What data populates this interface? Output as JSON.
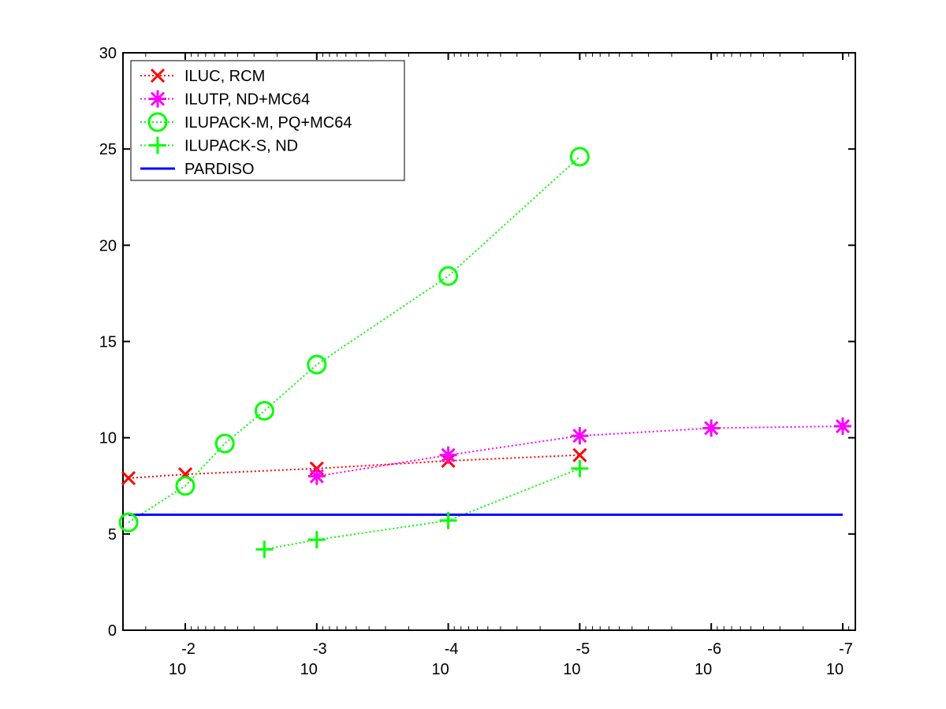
{
  "chart_data": {
    "type": "line",
    "x_scale": "log",
    "x_direction": "decreasing",
    "xlim": [
      0.028,
      1e-07
    ],
    "ylim": [
      0,
      30
    ],
    "xlabel": "",
    "ylabel": "",
    "title": "",
    "grid": false,
    "legend_position": "top-left",
    "x_tick_labels": [
      {
        "value": 0.01,
        "base": "10",
        "exp": "-2"
      },
      {
        "value": 0.001,
        "base": "10",
        "exp": "-3"
      },
      {
        "value": 0.0001,
        "base": "10",
        "exp": "-4"
      },
      {
        "value": 1e-05,
        "base": "10",
        "exp": "-5"
      },
      {
        "value": 1e-06,
        "base": "10",
        "exp": "-6"
      },
      {
        "value": 1e-07,
        "base": "10",
        "exp": "-7"
      }
    ],
    "y_tick_labels": [
      "0",
      "5",
      "10",
      "15",
      "20",
      "25",
      "30"
    ],
    "series": [
      {
        "name": "ILUC, RCM",
        "color": "#ff0000",
        "marker": "x",
        "linestyle": "dotted",
        "x": [
          0.027,
          0.01,
          0.001,
          0.0001,
          1e-05
        ],
        "y": [
          7.9,
          8.1,
          8.4,
          8.8,
          9.1
        ]
      },
      {
        "name": "ILUTP,  ND+MC64",
        "color": "#ff00ff",
        "marker": "asterisk",
        "linestyle": "dotted",
        "x": [
          0.001,
          0.0001,
          1e-05,
          1e-06,
          1e-07
        ],
        "y": [
          8.0,
          9.1,
          10.1,
          10.5,
          10.6
        ]
      },
      {
        "name": "ILUPACK-M, PQ+MC64",
        "color": "#00ff00",
        "marker": "circle",
        "linestyle": "dotted",
        "x": [
          0.027,
          0.01,
          0.005,
          0.0025,
          0.001,
          0.0001,
          1e-05
        ],
        "y": [
          5.6,
          7.5,
          9.7,
          11.4,
          13.8,
          18.4,
          24.6
        ]
      },
      {
        "name": "ILUPACK-S, ND",
        "color": "#00ff00",
        "marker": "plus",
        "linestyle": "dotted",
        "x": [
          0.0025,
          0.001,
          0.0001,
          1e-05
        ],
        "y": [
          4.2,
          4.7,
          5.7,
          8.4
        ]
      },
      {
        "name": "PARDISO",
        "color": "#0000ff",
        "marker": "none",
        "linestyle": "solid",
        "x": [
          0.027,
          1e-07
        ],
        "y": [
          6.0,
          6.0
        ]
      }
    ]
  }
}
